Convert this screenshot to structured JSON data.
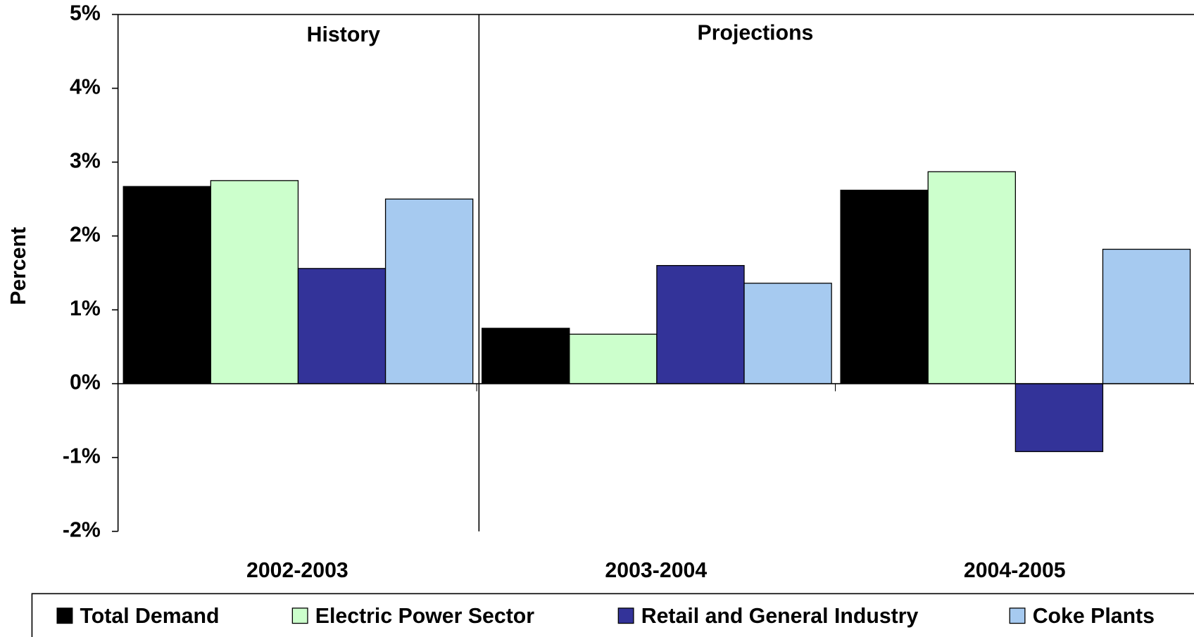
{
  "chart_data": {
    "type": "bar",
    "y_label": "Percent",
    "annotations": [
      "History",
      "Projections"
    ],
    "categories": [
      "2002-2003",
      "2003-2004",
      "2004-2005"
    ],
    "series": [
      {
        "name": "Total Demand",
        "color": "#000000",
        "values": [
          2.67,
          0.75,
          2.62
        ]
      },
      {
        "name": "Electric Power Sector",
        "color": "#ccffcc",
        "values": [
          2.75,
          0.67,
          2.87
        ]
      },
      {
        "name": "Retail and General Industry",
        "color": "#333399",
        "values": [
          1.56,
          1.6,
          -0.92
        ]
      },
      {
        "name": "Coke Plants",
        "color": "#a6caf0",
        "values": [
          2.5,
          1.36,
          1.82
        ]
      }
    ],
    "ylim": [
      -2,
      5
    ],
    "yticks": [
      {
        "value": -2,
        "label": "-2%"
      },
      {
        "value": -1,
        "label": "-1%"
      },
      {
        "value": 0,
        "label": "0%"
      },
      {
        "value": 1,
        "label": "1%"
      },
      {
        "value": 2,
        "label": "2%"
      },
      {
        "value": 3,
        "label": "3%"
      },
      {
        "value": 4,
        "label": "4%"
      },
      {
        "value": 5,
        "label": "5%"
      }
    ],
    "legend": "bottom"
  }
}
